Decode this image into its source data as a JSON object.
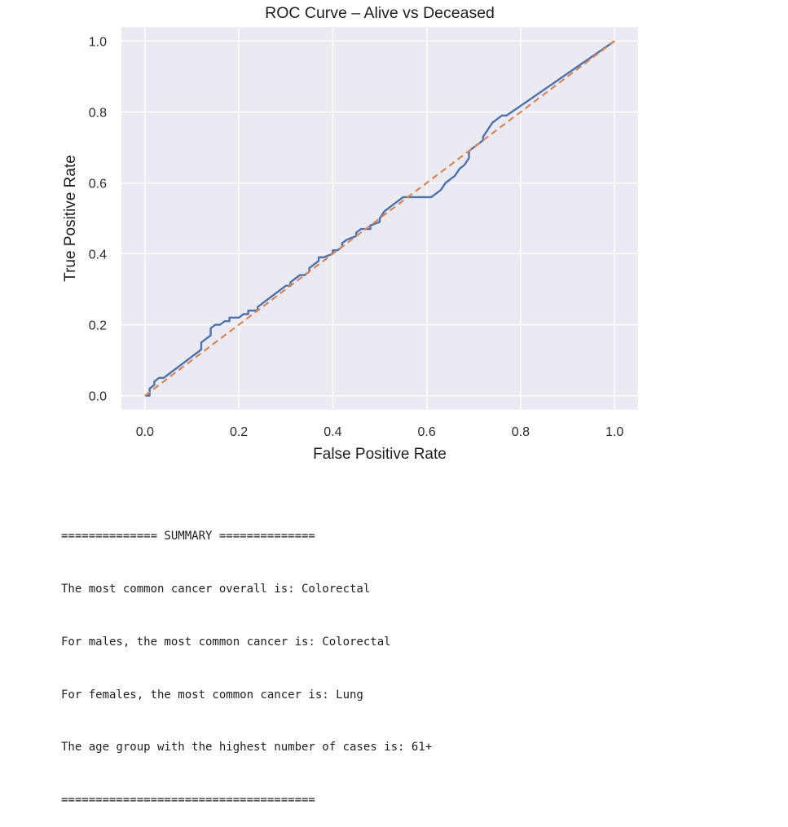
{
  "chart_data": {
    "type": "line",
    "title": "ROC Curve – Alive vs Deceased",
    "xlabel": "False Positive Rate",
    "ylabel": "True Positive Rate",
    "xlim": [
      -0.05,
      1.05
    ],
    "ylim": [
      -0.04,
      1.04
    ],
    "xticks": [
      "0.0",
      "0.2",
      "0.4",
      "0.6",
      "0.8",
      "1.0"
    ],
    "yticks": [
      "0.0",
      "0.2",
      "0.4",
      "0.6",
      "0.8",
      "1.0"
    ],
    "grid": true,
    "background": "#eaeaf2",
    "series": [
      {
        "color": "#4c72b0",
        "style": "solid",
        "x": [
          0.0,
          0.01,
          0.01,
          0.02,
          0.02,
          0.03,
          0.04,
          0.05,
          0.06,
          0.07,
          0.08,
          0.09,
          0.1,
          0.11,
          0.12,
          0.12,
          0.13,
          0.14,
          0.14,
          0.15,
          0.16,
          0.17,
          0.18,
          0.18,
          0.2,
          0.21,
          0.22,
          0.22,
          0.24,
          0.24,
          0.25,
          0.26,
          0.27,
          0.28,
          0.29,
          0.3,
          0.31,
          0.31,
          0.32,
          0.33,
          0.34,
          0.35,
          0.35,
          0.36,
          0.37,
          0.37,
          0.38,
          0.4,
          0.4,
          0.41,
          0.42,
          0.42,
          0.43,
          0.45,
          0.45,
          0.46,
          0.48,
          0.48,
          0.5,
          0.5,
          0.51,
          0.52,
          0.53,
          0.54,
          0.55,
          0.57,
          0.59,
          0.61,
          0.62,
          0.63,
          0.64,
          0.65,
          0.66,
          0.67,
          0.68,
          0.69,
          0.69,
          0.7,
          0.71,
          0.72,
          0.72,
          0.73,
          0.74,
          0.75,
          0.76,
          0.77,
          1.0
        ],
        "y": [
          0.0,
          0.0,
          0.02,
          0.03,
          0.04,
          0.05,
          0.05,
          0.06,
          0.07,
          0.08,
          0.09,
          0.1,
          0.11,
          0.12,
          0.13,
          0.15,
          0.16,
          0.17,
          0.19,
          0.2,
          0.2,
          0.21,
          0.21,
          0.22,
          0.22,
          0.23,
          0.23,
          0.24,
          0.24,
          0.25,
          0.26,
          0.27,
          0.28,
          0.29,
          0.3,
          0.31,
          0.31,
          0.32,
          0.33,
          0.34,
          0.34,
          0.35,
          0.36,
          0.37,
          0.38,
          0.39,
          0.39,
          0.4,
          0.41,
          0.41,
          0.42,
          0.43,
          0.44,
          0.45,
          0.46,
          0.47,
          0.47,
          0.48,
          0.49,
          0.5,
          0.52,
          0.53,
          0.54,
          0.55,
          0.56,
          0.56,
          0.56,
          0.56,
          0.57,
          0.58,
          0.6,
          0.61,
          0.62,
          0.64,
          0.65,
          0.67,
          0.69,
          0.7,
          0.71,
          0.72,
          0.73,
          0.75,
          0.77,
          0.78,
          0.79,
          0.79,
          1.0
        ]
      },
      {
        "color": "#dd8452",
        "style": "dashed",
        "x": [
          0.0,
          1.0
        ],
        "y": [
          0.0,
          1.0
        ]
      }
    ]
  },
  "summary": {
    "header": "============== SUMMARY ==============",
    "lines": [
      "The most common cancer overall is: Colorectal",
      "For males, the most common cancer is: Colorectal",
      "For females, the most common cancer is: Lung",
      "The age group with the highest number of cases is: 61+"
    ],
    "footer": "====================================="
  }
}
